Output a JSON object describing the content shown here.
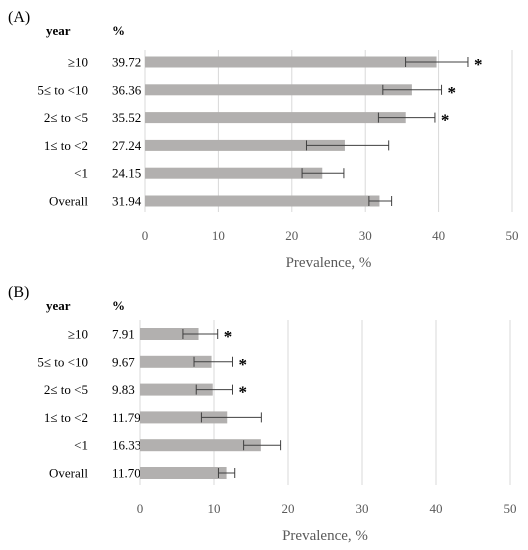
{
  "colors": {
    "bar": "#b2b0af",
    "grid": "#d9d9d9",
    "text": "#000000",
    "error": "#404040",
    "label": "#5a5a5a"
  },
  "chart_data": [
    {
      "type": "bar",
      "orientation": "horizontal",
      "panel_label": "(A)",
      "col_year": "year",
      "col_pct": "%",
      "categories": [
        "≥10",
        "5≤ to <10",
        "2≤ to <5",
        "1≤ to <2",
        "<1",
        "Overall"
      ],
      "value_labels": [
        "39.72",
        "36.36",
        "35.52",
        "27.24",
        "24.15",
        "31.94"
      ],
      "values": [
        39.72,
        36.36,
        35.52,
        27.24,
        24.15,
        31.94
      ],
      "err_low": [
        35.5,
        32.4,
        31.8,
        22.0,
        21.4,
        30.5
      ],
      "err_high": [
        44.0,
        40.4,
        39.5,
        33.2,
        27.1,
        33.6
      ],
      "significant": [
        "*",
        "*",
        "*",
        "",
        "",
        ""
      ],
      "xticks": [
        "0",
        "10",
        "20",
        "30",
        "40",
        "50"
      ],
      "xlim": [
        0,
        50
      ],
      "xlabel": "Prevalence, %",
      "grid": true
    },
    {
      "type": "bar",
      "orientation": "horizontal",
      "panel_label": "(B)",
      "col_year": "year",
      "col_pct": "%",
      "categories": [
        "≥10",
        "5≤ to <10",
        "2≤ to <5",
        "1≤ to <2",
        "<1",
        "Overall"
      ],
      "value_labels": [
        "7.91",
        "9.67",
        "9.83",
        "11.79",
        "16.33",
        "11.70"
      ],
      "values": [
        7.91,
        9.67,
        9.83,
        11.79,
        16.33,
        11.7
      ],
      "err_low": [
        5.8,
        7.3,
        7.6,
        8.3,
        14.0,
        10.6
      ],
      "err_high": [
        10.5,
        12.5,
        12.5,
        16.4,
        19.0,
        12.8
      ],
      "significant": [
        "*",
        "*",
        "*",
        "",
        "",
        ""
      ],
      "xticks": [
        "0",
        "10",
        "20",
        "30",
        "40",
        "50"
      ],
      "xlim": [
        0,
        50
      ],
      "xlabel": "Prevalence, %",
      "grid": true
    }
  ]
}
